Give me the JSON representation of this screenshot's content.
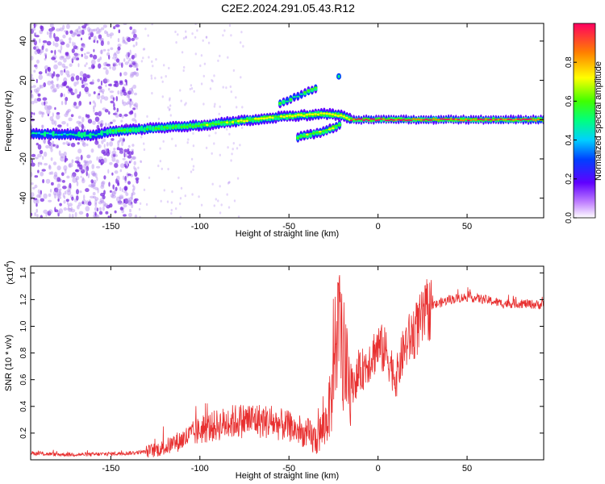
{
  "title": "C2E2.2024.291.05.43.R12",
  "colors": {
    "axis": "#000000",
    "snr_line": "#e83030",
    "speck": "#b48cf0",
    "speck_dark": "#7a2be0"
  },
  "chart_data": [
    {
      "type": "heatmap",
      "name": "spectrogram",
      "title": "C2E2.2024.291.05.43.R12",
      "xlabel": "Height of straight line (km)",
      "ylabel": "Frequency (Hz)",
      "xlim": [
        -195,
        93
      ],
      "ylim": [
        -50,
        49
      ],
      "x_ticks": [
        -150,
        -100,
        -50,
        0,
        50
      ],
      "x_tick_labels": [
        "-150",
        "-100",
        "-50",
        "0",
        "50"
      ],
      "y_ticks": [
        -40,
        -20,
        0,
        20,
        40
      ],
      "y_tick_labels": [
        "-40",
        "-20",
        "0",
        "20",
        "40"
      ],
      "colorbar": {
        "label": "Normalized spectral amplitude",
        "range": [
          0,
          1
        ],
        "ticks": [
          0.0,
          0.2,
          0.4,
          0.6,
          0.8
        ],
        "tick_labels": [
          "0.0",
          "0.2",
          "0.4",
          "0.6",
          "0.8"
        ]
      },
      "main_track": {
        "x": [
          -195,
          -160,
          -150,
          -120,
          -100,
          -80,
          -60,
          -45,
          -30,
          -20,
          -15,
          -10,
          0,
          20,
          40,
          60,
          70,
          93
        ],
        "freq": [
          -7,
          -8,
          -6,
          -4,
          -3,
          -1,
          1,
          2,
          3,
          2,
          0,
          0,
          0,
          0,
          0,
          0,
          0,
          0
        ]
      },
      "upper_branch": {
        "x": [
          -55,
          -50,
          -45,
          -40,
          -35
        ],
        "freq": [
          8,
          10,
          12,
          14,
          16
        ]
      },
      "lower_branch": {
        "x": [
          -45,
          -40,
          -35,
          -30,
          -25,
          -20
        ],
        "freq": [
          -9,
          -8,
          -7,
          -6,
          -4,
          -2
        ]
      },
      "isolated_peak": {
        "x": -22,
        "freq": 22
      }
    },
    {
      "type": "line",
      "name": "snr",
      "xlabel": "Height of straight line (km)",
      "ylabel": "SNR (10 * v/v)",
      "y_scale_note": "(x10",
      "y_scale_exp": "4",
      "xlim": [
        -195,
        93
      ],
      "ylim": [
        0,
        14.5
      ],
      "x_ticks": [
        -150,
        -100,
        -50,
        0,
        50
      ],
      "x_tick_labels": [
        "-150",
        "-100",
        "-50",
        "0",
        "50"
      ],
      "y_ticks": [
        2,
        4,
        6,
        8,
        10,
        12,
        14
      ],
      "y_tick_labels": [
        "0.2",
        "0.4",
        "0.6",
        "0.8",
        "1.0",
        "1.2",
        "1.4"
      ],
      "series": [
        {
          "name": "SNR",
          "x": [
            -195,
            -180,
            -160,
            -140,
            -130,
            -120,
            -110,
            -100,
            -90,
            -80,
            -70,
            -60,
            -50,
            -40,
            -35,
            -30,
            -25,
            -22,
            -20,
            -15,
            -10,
            -5,
            0,
            5,
            10,
            15,
            20,
            25,
            30,
            40,
            50,
            60,
            70,
            80,
            93
          ],
          "y": [
            0.5,
            0.4,
            0.4,
            0.5,
            0.6,
            0.9,
            1.5,
            2.2,
            2.6,
            2.9,
            3.0,
            2.8,
            2.5,
            1.8,
            1.5,
            2.5,
            5.0,
            9.0,
            7.5,
            5.5,
            6.5,
            7.5,
            8.5,
            8.0,
            6.0,
            8.5,
            9.5,
            10.5,
            11.5,
            12.0,
            12.2,
            12.0,
            11.7,
            11.7,
            11.6
          ]
        }
      ]
    }
  ]
}
